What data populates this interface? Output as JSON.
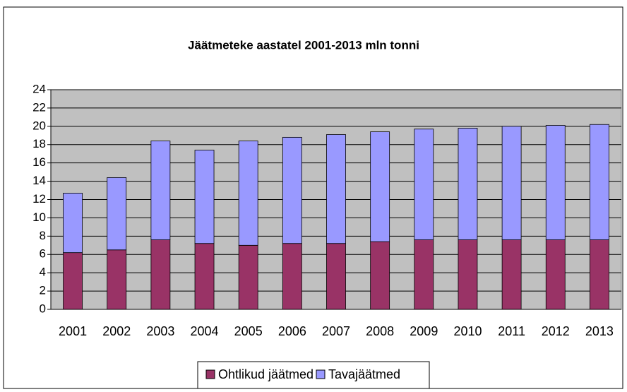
{
  "chart_data": {
    "type": "stacked_bar",
    "title": "Jäätmeteke aastatel 2001-2013 mln tonni",
    "categories": [
      "2001",
      "2002",
      "2003",
      "2004",
      "2005",
      "2006",
      "2007",
      "2008",
      "2009",
      "2010",
      "2011",
      "2012",
      "2013"
    ],
    "series": [
      {
        "name": "Ohtlikud jäätmed",
        "color": "#993366",
        "values": [
          6.2,
          6.5,
          7.6,
          7.2,
          7.0,
          7.2,
          7.2,
          7.4,
          7.6,
          7.6,
          7.6,
          7.6,
          7.6
        ]
      },
      {
        "name": "Tavajäätmed",
        "color": "#9999ff",
        "values": [
          6.5,
          7.9,
          10.8,
          10.2,
          11.4,
          11.6,
          11.9,
          12.0,
          12.1,
          12.2,
          12.4,
          12.5,
          12.6
        ]
      }
    ],
    "ylim": [
      0,
      24
    ],
    "yticks": [
      0,
      2,
      4,
      6,
      8,
      10,
      12,
      14,
      16,
      18,
      20,
      22,
      24
    ],
    "grid": true,
    "legend": "bottom"
  }
}
